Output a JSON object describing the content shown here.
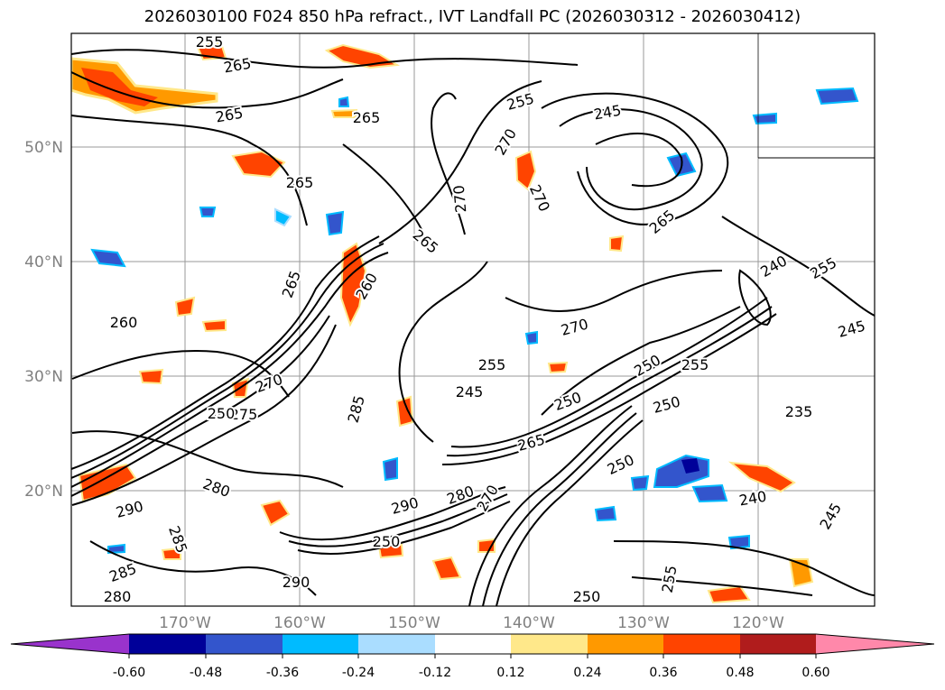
{
  "title": "2026030100 F024 850 hPa refract., IVT Landfall PC (2026030312 - 2026030412)",
  "map": {
    "lat_labels": [
      "50°N",
      "40°N",
      "30°N",
      "20°N"
    ],
    "lon_labels": [
      "170°W",
      "160°W",
      "150°W",
      "140°W",
      "130°W",
      "120°W"
    ],
    "contour_labels": [
      "255",
      "265",
      "265",
      "265",
      "265",
      "255",
      "245",
      "270",
      "270",
      "270",
      "265",
      "270",
      "260",
      "265",
      "285",
      "265",
      "250",
      "245",
      "255",
      "255",
      "260",
      "270",
      "275",
      "240",
      "250",
      "235",
      "250",
      "280",
      "290",
      "285",
      "290",
      "280",
      "285",
      "270",
      "290",
      "250",
      "280",
      "250",
      "265",
      "255",
      "255",
      "250",
      "240",
      "245",
      "245",
      "250"
    ]
  },
  "colorbar": {
    "tick_labels": [
      "-0.60",
      "-0.48",
      "-0.36",
      "-0.24",
      "-0.12",
      "0.12",
      "0.24",
      "0.36",
      "0.48",
      "0.60"
    ],
    "colors": [
      "#9933cc",
      "#000099",
      "#3355cc",
      "#00bbff",
      "#aaddff",
      "#ffffff",
      "#ffe88a",
      "#ff9900",
      "#ff4400",
      "#b01c1c",
      "#ff88aa"
    ]
  }
}
